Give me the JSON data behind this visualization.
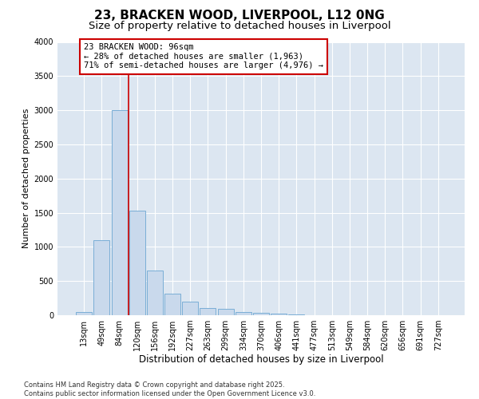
{
  "title": "23, BRACKEN WOOD, LIVERPOOL, L12 0NG",
  "subtitle": "Size of property relative to detached houses in Liverpool",
  "xlabel": "Distribution of detached houses by size in Liverpool",
  "ylabel": "Number of detached properties",
  "categories": [
    "13sqm",
    "49sqm",
    "84sqm",
    "120sqm",
    "156sqm",
    "192sqm",
    "227sqm",
    "263sqm",
    "299sqm",
    "334sqm",
    "370sqm",
    "406sqm",
    "441sqm",
    "477sqm",
    "513sqm",
    "549sqm",
    "584sqm",
    "620sqm",
    "656sqm",
    "691sqm",
    "727sqm"
  ],
  "values": [
    50,
    1100,
    3000,
    1530,
    650,
    310,
    200,
    110,
    90,
    50,
    30,
    20,
    10,
    5,
    5,
    2,
    2,
    2,
    1,
    1,
    1
  ],
  "bar_color": "#c9d9ec",
  "bar_edge_color": "#7aaed6",
  "vline_x": 2.5,
  "vline_color": "#cc0000",
  "annotation_text": "23 BRACKEN WOOD: 96sqm\n← 28% of detached houses are smaller (1,963)\n71% of semi-detached houses are larger (4,976) →",
  "annotation_box_color": "#ffffff",
  "annotation_box_edgecolor": "#cc0000",
  "ylim": [
    0,
    4000
  ],
  "yticks": [
    0,
    500,
    1000,
    1500,
    2000,
    2500,
    3000,
    3500,
    4000
  ],
  "plot_bg_color": "#dce6f1",
  "footer_line1": "Contains HM Land Registry data © Crown copyright and database right 2025.",
  "footer_line2": "Contains public sector information licensed under the Open Government Licence v3.0.",
  "title_fontsize": 11,
  "subtitle_fontsize": 9.5,
  "xlabel_fontsize": 8.5,
  "ylabel_fontsize": 8,
  "tick_fontsize": 7,
  "footer_fontsize": 6,
  "annot_fontsize": 7.5
}
